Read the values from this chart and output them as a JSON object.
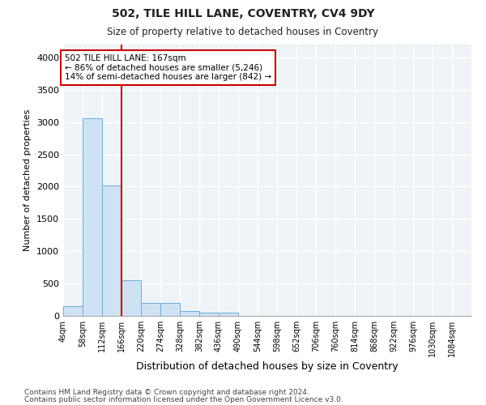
{
  "title1": "502, TILE HILL LANE, COVENTRY, CV4 9DY",
  "title2": "Size of property relative to detached houses in Coventry",
  "xlabel": "Distribution of detached houses by size in Coventry",
  "ylabel": "Number of detached properties",
  "bar_color": "#cfe2f3",
  "bar_edge_color": "#6baed6",
  "vline_x": 166,
  "vline_color": "#cc0000",
  "annotation_text": "502 TILE HILL LANE: 167sqm\n← 86% of detached houses are smaller (5,246)\n14% of semi-detached houses are larger (842) →",
  "annotation_box_color": "#cc0000",
  "ylim": [
    0,
    4200
  ],
  "xlim": [
    4,
    1138
  ],
  "bin_edges": [
    4,
    58,
    112,
    166,
    220,
    274,
    328,
    382,
    436,
    490,
    544,
    598,
    652,
    706,
    760,
    814,
    868,
    922,
    976,
    1030,
    1084
  ],
  "bin_heights": [
    145,
    3060,
    2020,
    555,
    205,
    205,
    75,
    55,
    50,
    0,
    0,
    0,
    0,
    0,
    0,
    0,
    0,
    0,
    0,
    0
  ],
  "tick_labels": [
    "4sqm",
    "58sqm",
    "112sqm",
    "166sqm",
    "220sqm",
    "274sqm",
    "328sqm",
    "382sqm",
    "436sqm",
    "490sqm",
    "544sqm",
    "598sqm",
    "652sqm",
    "706sqm",
    "760sqm",
    "814sqm",
    "868sqm",
    "922sqm",
    "976sqm",
    "1030sqm",
    "1084sqm"
  ],
  "yticks": [
    0,
    500,
    1000,
    1500,
    2000,
    2500,
    3000,
    3500,
    4000
  ],
  "footer1": "Contains HM Land Registry data © Crown copyright and database right 2024.",
  "footer2": "Contains public sector information licensed under the Open Government Licence v3.0.",
  "bg_color": "#ffffff",
  "plot_bg_color": "#eef3f8",
  "grid_color": "#ffffff"
}
